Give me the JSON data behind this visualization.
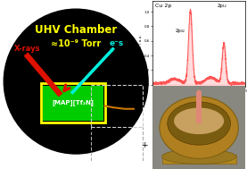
{
  "fig_width": 2.77,
  "fig_height": 1.89,
  "dpi": 100,
  "bg_color": "#ffffff",
  "title_text": "UHV Chamber",
  "subtitle_text": "≈10⁻⁹ Torr",
  "title_color": "#ffff00",
  "subtitle_color": "#ffff00",
  "xrays_color": "#dd1100",
  "electrons_color": "#00eedd",
  "beaker_border_color": "#ffff00",
  "liquid_fill_color": "#00cc00",
  "liquid_label": "[MAP][Tf₂N]",
  "wire_color": "#cc7700",
  "minus_label": "-",
  "plus_label": "+"
}
